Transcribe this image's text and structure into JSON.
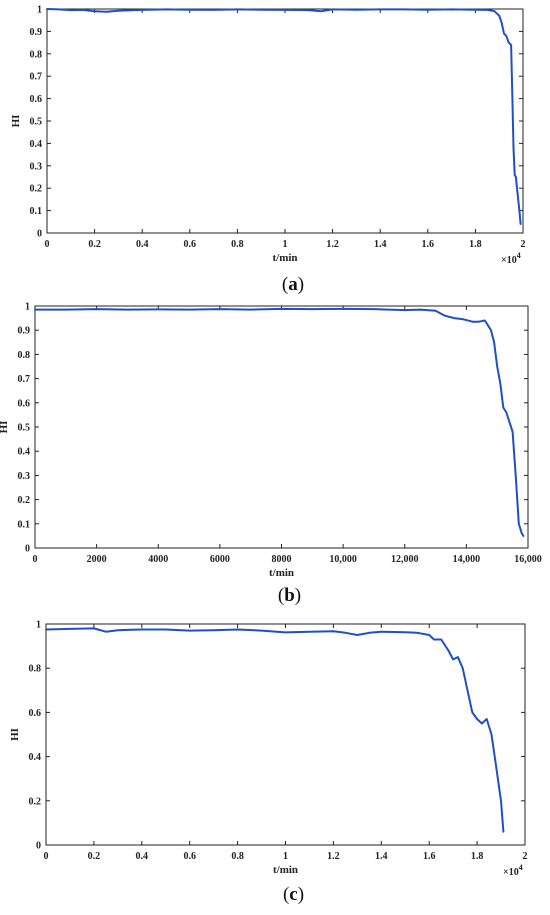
{
  "chart_data": [
    {
      "type": "line",
      "panel_label": "a",
      "xlabel": "t/min",
      "ylabel": "HI",
      "xlim": [
        0,
        20000
      ],
      "ylim": [
        0,
        1
      ],
      "x_ticks": [
        "0",
        "0.2",
        "0.4",
        "0.6",
        "0.8",
        "1",
        "1.2",
        "1.4",
        "1.6",
        "1.8",
        "2"
      ],
      "y_ticks": [
        "0",
        "0.1",
        "0.2",
        "0.3",
        "0.4",
        "0.5",
        "0.6",
        "0.7",
        "0.8",
        "0.9",
        "1"
      ],
      "x_multiplier": "×10",
      "x_multiplier_exp": "4",
      "series": [
        {
          "color": "#1f4fc4",
          "x": [
            0,
            500,
            1000,
            1500,
            2000,
            2500,
            3000,
            3500,
            4000,
            5000,
            6000,
            7000,
            8000,
            9000,
            10000,
            11000,
            11500,
            12000,
            13000,
            14000,
            15000,
            16000,
            17000,
            18000,
            18500,
            18800,
            19000,
            19100,
            19200,
            19300,
            19400,
            19500,
            19550,
            19600,
            19650,
            19700,
            19750,
            19800,
            19850,
            19900
          ],
          "y": [
            1.0,
            0.998,
            0.995,
            0.996,
            0.99,
            0.988,
            0.992,
            0.994,
            0.996,
            0.998,
            0.997,
            0.996,
            0.998,
            0.997,
            0.996,
            0.995,
            0.99,
            0.998,
            0.997,
            0.998,
            0.998,
            0.997,
            0.998,
            0.997,
            0.996,
            0.99,
            0.97,
            0.94,
            0.89,
            0.88,
            0.85,
            0.84,
            0.62,
            0.38,
            0.26,
            0.25,
            0.2,
            0.15,
            0.1,
            0.04
          ]
        }
      ]
    },
    {
      "type": "line",
      "panel_label": "b",
      "xlabel": "t/min",
      "ylabel": "HI",
      "xlim": [
        0,
        16000
      ],
      "ylim": [
        0,
        1
      ],
      "x_ticks": [
        "0",
        "2000",
        "4000",
        "6000",
        "8000",
        "10,000",
        "12,000",
        "14,000",
        "16,000"
      ],
      "y_ticks": [
        "0",
        "0.1",
        "0.2",
        "0.3",
        "0.4",
        "0.5",
        "0.6",
        "0.7",
        "0.8",
        "0.9",
        "1"
      ],
      "x_multiplier": "",
      "x_multiplier_exp": "",
      "series": [
        {
          "color": "#1f4fc4",
          "x": [
            0,
            1000,
            2000,
            3000,
            4000,
            5000,
            6000,
            7000,
            8000,
            9000,
            10000,
            11000,
            12000,
            12500,
            13000,
            13300,
            13600,
            13900,
            14200,
            14400,
            14600,
            14800,
            14900,
            15000,
            15100,
            15200,
            15300,
            15400,
            15500,
            15600,
            15700,
            15750,
            15800,
            15850
          ],
          "y": [
            0.985,
            0.985,
            0.987,
            0.985,
            0.986,
            0.985,
            0.987,
            0.985,
            0.988,
            0.987,
            0.988,
            0.987,
            0.983,
            0.985,
            0.98,
            0.96,
            0.95,
            0.945,
            0.935,
            0.935,
            0.94,
            0.9,
            0.85,
            0.75,
            0.68,
            0.58,
            0.56,
            0.52,
            0.48,
            0.3,
            0.1,
            0.08,
            0.06,
            0.05
          ]
        }
      ]
    },
    {
      "type": "line",
      "panel_label": "c",
      "xlabel": "t/min",
      "ylabel": "HI",
      "xlim": [
        0,
        20000
      ],
      "ylim": [
        0,
        1
      ],
      "x_ticks": [
        "0",
        "0.2",
        "0.4",
        "0.6",
        "0.8",
        "1",
        "1.2",
        "1.4",
        "1.6",
        "1.8",
        "2"
      ],
      "y_ticks": [
        "0",
        "0.2",
        "0.4",
        "0.6",
        "0.8",
        "1"
      ],
      "x_multiplier": "×10",
      "x_multiplier_exp": "4",
      "series": [
        {
          "color": "#1f4fc4",
          "x": [
            0,
            1000,
            2000,
            2500,
            3000,
            4000,
            5000,
            6000,
            7000,
            8000,
            9000,
            10000,
            11000,
            12000,
            12500,
            13000,
            13500,
            14000,
            15000,
            15500,
            16000,
            16200,
            16500,
            16800,
            17000,
            17200,
            17400,
            17600,
            17800,
            18000,
            18200,
            18400,
            18600,
            18800,
            19000,
            19100
          ],
          "y": [
            0.975,
            0.978,
            0.98,
            0.965,
            0.972,
            0.975,
            0.975,
            0.97,
            0.972,
            0.975,
            0.97,
            0.962,
            0.965,
            0.967,
            0.96,
            0.95,
            0.96,
            0.965,
            0.963,
            0.96,
            0.95,
            0.93,
            0.93,
            0.88,
            0.84,
            0.85,
            0.8,
            0.7,
            0.6,
            0.57,
            0.55,
            0.57,
            0.5,
            0.35,
            0.2,
            0.06
          ]
        }
      ]
    }
  ]
}
